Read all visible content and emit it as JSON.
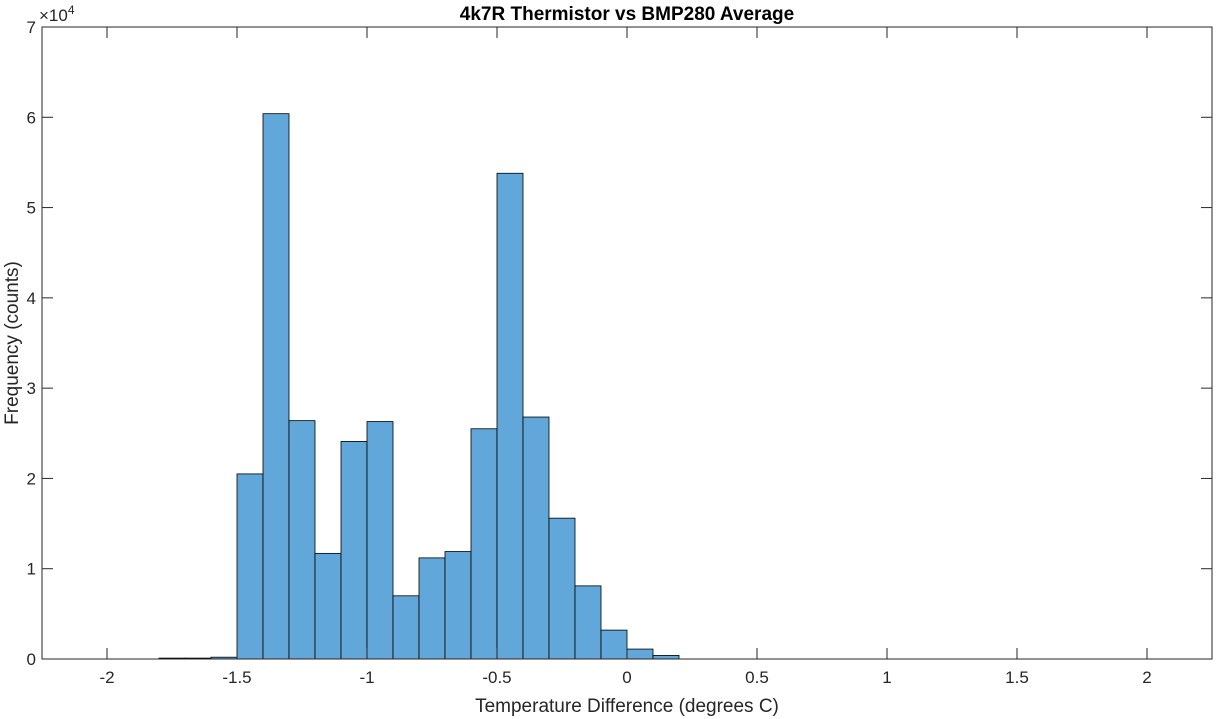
{
  "chart_data": {
    "type": "bar",
    "title": "4k7R Thermistor vs BMP280 Average",
    "xlabel": "Temperature Difference (degrees C)",
    "ylabel": "Frequency (counts)",
    "y_exponent_base": "×10",
    "y_exponent_power": "4",
    "xlim": [
      -2.25,
      2.25
    ],
    "ylim": [
      0,
      70000
    ],
    "xticks": [
      -2,
      -1.5,
      -1,
      -0.5,
      0,
      0.5,
      1,
      1.5,
      2
    ],
    "xtick_labels": [
      "-2",
      "-1.5",
      "-1",
      "-0.5",
      "0",
      "0.5",
      "1",
      "1.5",
      "2"
    ],
    "yticks": [
      0,
      10000,
      20000,
      30000,
      40000,
      50000,
      60000,
      70000
    ],
    "ytick_labels": [
      "0",
      "1",
      "2",
      "3",
      "4",
      "5",
      "6",
      "7"
    ],
    "grid": false,
    "bar_color": "#61a7d9",
    "edge_color": "#000000",
    "bin_width": 0.1,
    "bin_starts": [
      -1.8,
      -1.7,
      -1.6,
      -1.5,
      -1.4,
      -1.3,
      -1.2,
      -1.1,
      -1.0,
      -0.9,
      -0.8,
      -0.7,
      -0.6,
      -0.5,
      -0.4,
      -0.3,
      -0.2,
      -0.1,
      0.0,
      0.1
    ],
    "values": [
      100,
      100,
      200,
      20500,
      60400,
      26400,
      11700,
      24100,
      26300,
      7000,
      11200,
      11900,
      25500,
      53800,
      26800,
      15600,
      8100,
      3200,
      1100,
      400
    ]
  }
}
